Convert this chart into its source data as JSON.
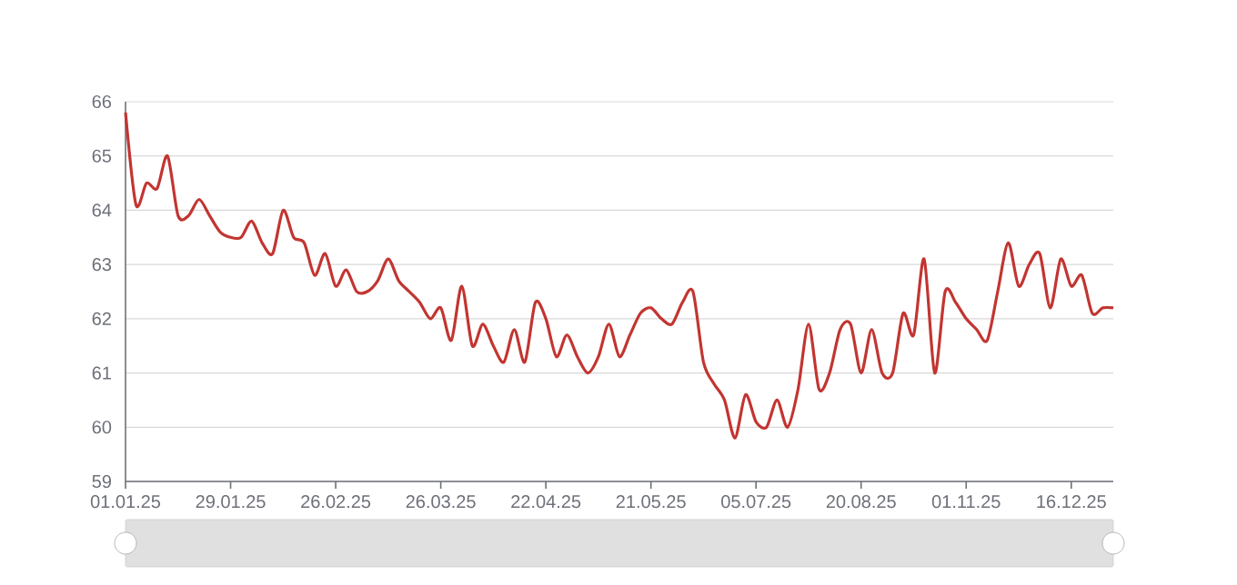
{
  "chart_data": {
    "type": "line",
    "categories": [
      "01.01.25",
      null,
      null,
      null,
      null,
      null,
      null,
      null,
      null,
      null,
      "29.01.25",
      null,
      null,
      null,
      null,
      null,
      null,
      null,
      null,
      null,
      "26.02.25",
      null,
      null,
      null,
      null,
      null,
      null,
      null,
      null,
      null,
      "26.03.25",
      null,
      null,
      null,
      null,
      null,
      null,
      null,
      null,
      null,
      "22.04.25",
      null,
      null,
      null,
      null,
      null,
      null,
      null,
      null,
      null,
      "21.05.25",
      null,
      null,
      null,
      null,
      null,
      null,
      null,
      null,
      null,
      "05.07.25",
      null,
      null,
      null,
      null,
      null,
      null,
      null,
      null,
      null,
      "20.08.25",
      null,
      null,
      null,
      null,
      null,
      null,
      null,
      null,
      null,
      "01.11.25",
      null,
      null,
      null,
      null,
      null,
      null,
      null,
      null,
      null,
      "16.12.25",
      null,
      null,
      null,
      null
    ],
    "values": [
      65.8,
      64.1,
      64.5,
      64.4,
      65.0,
      63.9,
      63.9,
      64.2,
      63.9,
      63.6,
      63.5,
      63.5,
      63.8,
      63.4,
      63.2,
      64.0,
      63.5,
      63.4,
      62.8,
      63.2,
      62.6,
      62.9,
      62.5,
      62.5,
      62.7,
      63.1,
      62.7,
      62.5,
      62.3,
      62.0,
      62.2,
      61.6,
      62.6,
      61.5,
      61.9,
      61.5,
      61.2,
      61.8,
      61.2,
      62.3,
      62.0,
      61.3,
      61.7,
      61.3,
      61.0,
      61.3,
      61.9,
      61.3,
      61.7,
      62.1,
      62.2,
      62.0,
      61.9,
      62.3,
      62.5,
      61.2,
      60.8,
      60.5,
      59.8,
      60.6,
      60.1,
      60.0,
      60.5,
      60.0,
      60.7,
      61.9,
      60.7,
      61.0,
      61.8,
      61.9,
      61.0,
      61.8,
      61.0,
      61.0,
      62.1,
      61.7,
      63.1,
      61.0,
      62.5,
      62.3,
      62.0,
      61.8,
      61.6,
      62.5,
      63.4,
      62.6,
      63.0,
      63.2,
      62.2,
      63.1,
      62.6,
      62.8,
      62.1,
      62.2,
      62.2
    ],
    "color": "#c23531",
    "ylim": [
      59,
      66
    ],
    "yticks": [
      59,
      60,
      61,
      62,
      63,
      64,
      65,
      66
    ],
    "grid": "y"
  }
}
